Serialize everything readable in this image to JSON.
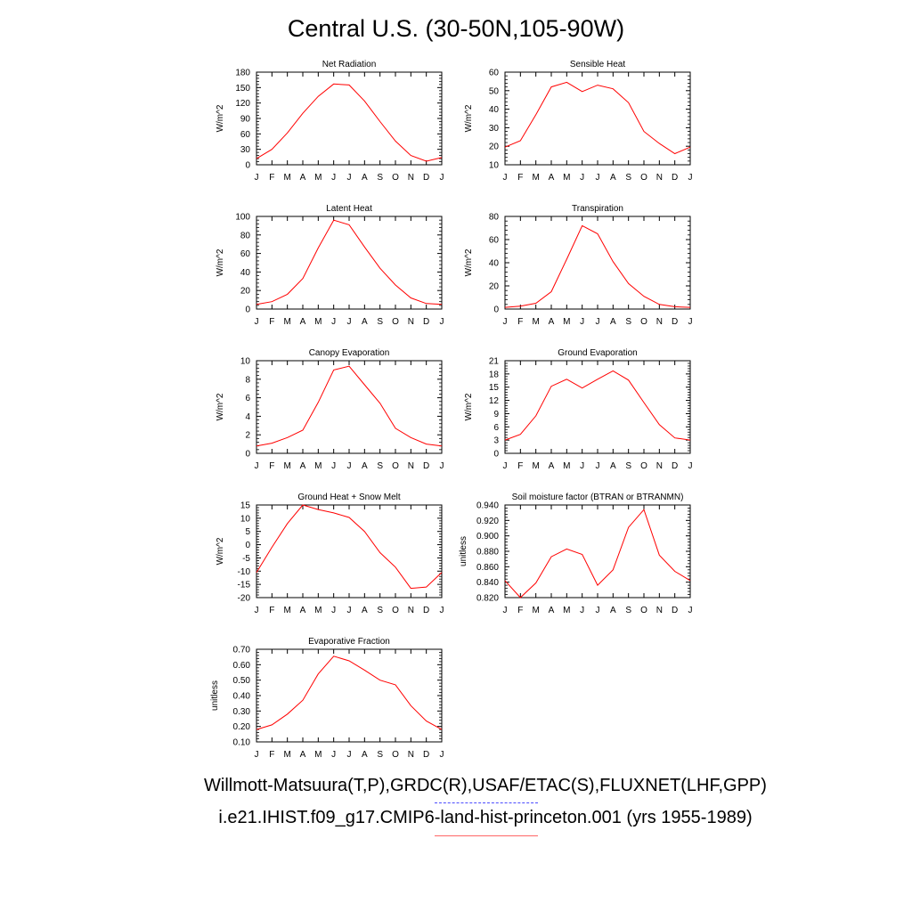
{
  "page_title": "Central U.S. (30-50N,105-90W)",
  "obs_credit": "Willmott-Matsuura(T,P),GRDC(R),USAF/ETAC(S),FLUXNET(LHF,GPP)",
  "model_credit": "i.e21.IHIST.f09_g17.CMIP6-land-hist-princeton.001 (yrs 1955-1989)",
  "colors": {
    "model_series": "#ff0000",
    "obs_series": "#0000ff"
  },
  "chart_data": [
    {
      "type": "line",
      "title": "Net Radiation",
      "ylabel": "W/m^2",
      "categories": [
        "J",
        "F",
        "M",
        "A",
        "M",
        "J",
        "J",
        "A",
        "S",
        "O",
        "N",
        "D",
        "J"
      ],
      "ylim": [
        0,
        180
      ],
      "yticks": [
        "0",
        "30",
        "60",
        "90",
        "120",
        "150",
        "180"
      ],
      "series": [
        {
          "values": [
            12,
            30,
            62,
            100,
            133,
            157,
            155,
            124,
            84,
            46,
            18,
            7,
            14
          ]
        }
      ]
    },
    {
      "type": "line",
      "title": "Sensible Heat",
      "ylabel": "W/m^2",
      "categories": [
        "J",
        "F",
        "M",
        "A",
        "M",
        "J",
        "J",
        "A",
        "S",
        "O",
        "N",
        "D",
        "J"
      ],
      "ylim": [
        10,
        60
      ],
      "yticks": [
        "10",
        "20",
        "30",
        "40",
        "50",
        "60"
      ],
      "series": [
        {
          "values": [
            19.5,
            23,
            37,
            52,
            54.5,
            49.5,
            53,
            51,
            43.5,
            28,
            21.5,
            16,
            19.5
          ]
        }
      ]
    },
    {
      "type": "line",
      "title": "Latent Heat",
      "ylabel": "W/m^2",
      "categories": [
        "J",
        "F",
        "M",
        "A",
        "M",
        "J",
        "J",
        "A",
        "S",
        "O",
        "N",
        "D",
        "J"
      ],
      "ylim": [
        0,
        100
      ],
      "yticks": [
        "0",
        "20",
        "40",
        "60",
        "80",
        "100"
      ],
      "series": [
        {
          "values": [
            5,
            8,
            16,
            33,
            66,
            96,
            91,
            67,
            44,
            26,
            12,
            6,
            5
          ]
        }
      ]
    },
    {
      "type": "line",
      "title": "Transpiration",
      "ylabel": "W/m^2",
      "categories": [
        "J",
        "F",
        "M",
        "A",
        "M",
        "J",
        "J",
        "A",
        "S",
        "O",
        "N",
        "D",
        "J"
      ],
      "ylim": [
        0,
        80
      ],
      "yticks": [
        "0",
        "20",
        "40",
        "60",
        "80"
      ],
      "series": [
        {
          "values": [
            1.5,
            2.5,
            5,
            15,
            43,
            72,
            65,
            41,
            22,
            11,
            4,
            2,
            1.5
          ]
        }
      ]
    },
    {
      "type": "line",
      "title": "Canopy Evaporation",
      "ylabel": "W/m^2",
      "categories": [
        "J",
        "F",
        "M",
        "A",
        "M",
        "J",
        "J",
        "A",
        "S",
        "O",
        "N",
        "D",
        "J"
      ],
      "ylim": [
        0,
        10
      ],
      "yticks": [
        "0",
        "2",
        "4",
        "6",
        "8",
        "10"
      ],
      "series": [
        {
          "values": [
            0.8,
            1.1,
            1.7,
            2.5,
            5.5,
            9.0,
            9.4,
            7.4,
            5.4,
            2.7,
            1.7,
            1.0,
            0.8
          ]
        }
      ]
    },
    {
      "type": "line",
      "title": "Ground Evaporation",
      "ylabel": "W/m^2",
      "categories": [
        "J",
        "F",
        "M",
        "A",
        "M",
        "J",
        "J",
        "A",
        "S",
        "O",
        "N",
        "D",
        "J"
      ],
      "ylim": [
        0,
        21
      ],
      "yticks": [
        "0",
        "3",
        "6",
        "9",
        "12",
        "15",
        "18",
        "21"
      ],
      "series": [
        {
          "values": [
            3.0,
            4.3,
            8.5,
            15.2,
            16.8,
            14.8,
            16.8,
            18.7,
            16.6,
            11.5,
            6.5,
            3.5,
            3.0
          ]
        }
      ]
    },
    {
      "type": "line",
      "title": "Ground Heat + Snow Melt",
      "ylabel": "W/m^2",
      "categories": [
        "J",
        "F",
        "M",
        "A",
        "M",
        "J",
        "J",
        "A",
        "S",
        "O",
        "N",
        "D",
        "J"
      ],
      "ylim": [
        -20,
        15
      ],
      "yticks": [
        "-20",
        "-15",
        "-10",
        "-5",
        "0",
        "5",
        "10",
        "15"
      ],
      "series": [
        {
          "values": [
            -10.5,
            -1,
            8,
            15,
            13.3,
            12,
            10.3,
            5,
            -3,
            -8.5,
            -16.5,
            -16,
            -10.5
          ]
        }
      ]
    },
    {
      "type": "line",
      "title": "Soil moisture factor (BTRAN or BTRANMN)",
      "ylabel": "unitless",
      "categories": [
        "J",
        "F",
        "M",
        "A",
        "M",
        "J",
        "J",
        "A",
        "S",
        "O",
        "N",
        "D",
        "J"
      ],
      "ylim": [
        0.82,
        0.94
      ],
      "yticks": [
        "0.820",
        "0.840",
        "0.860",
        "0.880",
        "0.900",
        "0.920",
        "0.940"
      ],
      "series": [
        {
          "values": [
            0.842,
            0.82,
            0.839,
            0.873,
            0.883,
            0.876,
            0.836,
            0.856,
            0.911,
            0.934,
            0.875,
            0.854,
            0.842
          ]
        }
      ]
    },
    {
      "type": "line",
      "title": "Evaporative Fraction",
      "ylabel": "unitless",
      "categories": [
        "J",
        "F",
        "M",
        "A",
        "M",
        "J",
        "J",
        "A",
        "S",
        "O",
        "N",
        "D",
        "J"
      ],
      "ylim": [
        0.1,
        0.7
      ],
      "yticks": [
        "0.10",
        "0.20",
        "0.30",
        "0.40",
        "0.50",
        "0.60",
        "0.70"
      ],
      "series": [
        {
          "values": [
            0.18,
            0.21,
            0.28,
            0.37,
            0.54,
            0.655,
            0.625,
            0.565,
            0.5,
            0.47,
            0.335,
            0.235,
            0.18
          ]
        }
      ]
    }
  ]
}
